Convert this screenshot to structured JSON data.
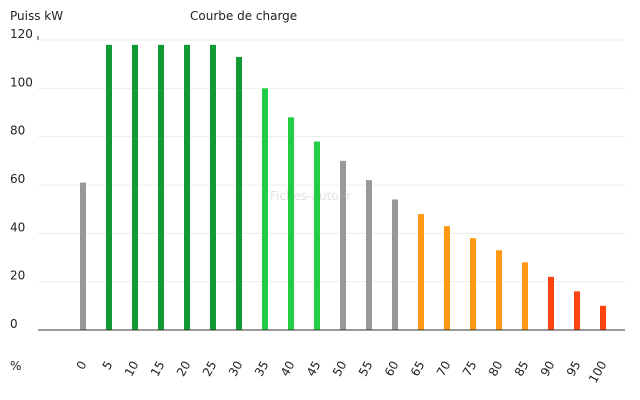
{
  "chart_data": {
    "type": "bar",
    "title": "Courbe de charge",
    "ylabel": "Puiss kW",
    "xlabel": "%",
    "watermark": "Fiches-auto.fr",
    "ylim": [
      0,
      120
    ],
    "yticks": [
      "0",
      "20",
      "40",
      "60",
      "80",
      "100",
      "120"
    ],
    "grid": true,
    "categories": [
      "0",
      "5",
      "10",
      "15",
      "20",
      "25",
      "30",
      "35",
      "40",
      "45",
      "50",
      "55",
      "60",
      "65",
      "70",
      "75",
      "80",
      "85",
      "90",
      "95",
      "100"
    ],
    "values": [
      61,
      118,
      118,
      118,
      118,
      118,
      113,
      100,
      88,
      78,
      70,
      62,
      54,
      48,
      43,
      38,
      33,
      28,
      22,
      16,
      10
    ],
    "colors": [
      "#999999",
      "#119933",
      "#119933",
      "#119933",
      "#119933",
      "#119933",
      "#119933",
      "#22cc44",
      "#22cc44",
      "#22cc44",
      "#999999",
      "#999999",
      "#999999",
      "#ff9911",
      "#ff9911",
      "#ff9911",
      "#ff9911",
      "#ff9911",
      "#ff4411",
      "#ff4411",
      "#ff4411"
    ]
  }
}
